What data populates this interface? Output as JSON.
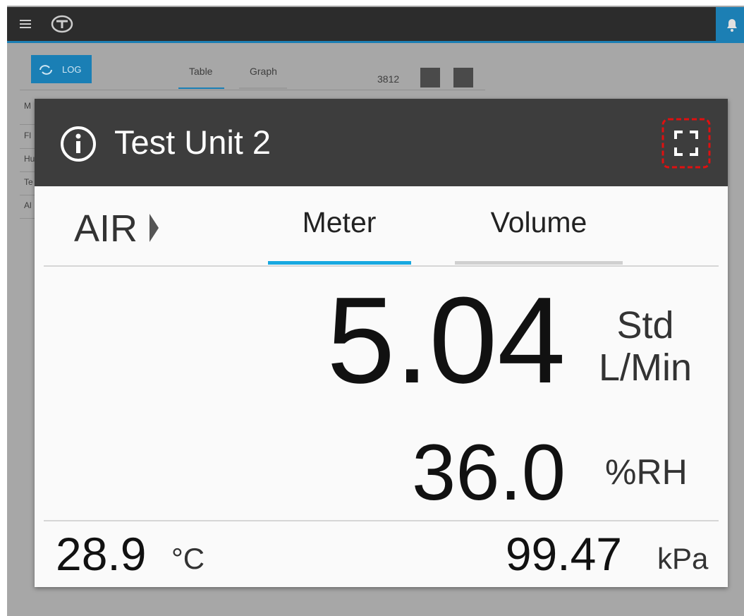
{
  "background": {
    "log_button": "LOG",
    "tabs": [
      "Table",
      "Graph"
    ],
    "counter": "3812",
    "rows": [
      "M",
      "Fl",
      "Hu",
      "Te",
      "Al"
    ]
  },
  "dialog": {
    "title": "Test Unit 2",
    "gas": "AIR",
    "tabs": [
      "Meter",
      "Volume"
    ],
    "flow": {
      "value": "5.04",
      "unit_lines": [
        "Std",
        "L/Min"
      ]
    },
    "humidity": {
      "value": "36.0",
      "unit": "%RH"
    },
    "temperature": {
      "value": "28.9",
      "unit": "°C"
    },
    "pressure": {
      "value": "99.47",
      "unit": "kPa"
    }
  }
}
